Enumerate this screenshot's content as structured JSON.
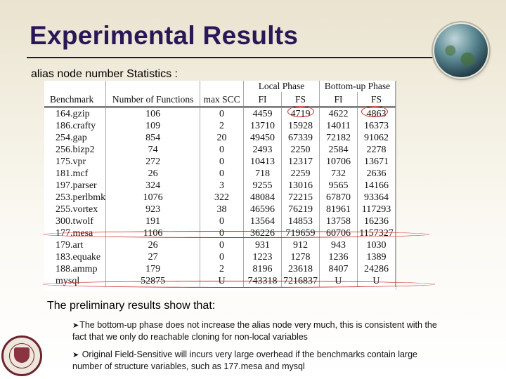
{
  "slide": {
    "title": "Experimental Results",
    "subheading": "alias node number Statistics :",
    "intro": "The preliminary results show that:",
    "bullets": [
      {
        "marker": "➤",
        "text": "The bottom-up phase does not increase the alias node very much, this is consistent with the fact that we only do reachable cloning for non-local variables"
      },
      {
        "marker": "➤",
        "text": " Original  Field-Sensitive will incurs very large overhead if the benchmarks contain large number of structure variables, such as 177.mesa and mysql"
      }
    ]
  },
  "table": {
    "group_headers": {
      "local_phase": "Local Phase",
      "bottom_up_phase": "Bottom-up Phase"
    },
    "columns": [
      "Benchmark",
      "Number of Functions",
      "max SCC",
      "FI",
      "FS",
      "FI",
      "FS"
    ],
    "rows": [
      [
        "164.gzip",
        "106",
        "0",
        "4459",
        "4719",
        "4622",
        "4863"
      ],
      [
        "186.crafty",
        "109",
        "2",
        "13710",
        "15928",
        "14011",
        "16373"
      ],
      [
        "254.gap",
        "854",
        "20",
        "49450",
        "67339",
        "72182",
        "91062"
      ],
      [
        "256.bizp2",
        "74",
        "0",
        "2493",
        "2250",
        "2584",
        "2278"
      ],
      [
        "175.vpr",
        "272",
        "0",
        "10413",
        "12317",
        "10706",
        "13671"
      ],
      [
        "181.mcf",
        "26",
        "0",
        "718",
        "2259",
        "732",
        "2636"
      ],
      [
        "197.parser",
        "324",
        "3",
        "9255",
        "13016",
        "9565",
        "14166"
      ],
      [
        "253.perlbmk",
        "1076",
        "322",
        "48084",
        "72215",
        "67870",
        "93364"
      ],
      [
        "255.vortex",
        "923",
        "38",
        "46596",
        "76219",
        "81961",
        "117293"
      ],
      [
        "300.twolf",
        "191",
        "0",
        "13564",
        "14853",
        "13758",
        "16236"
      ],
      [
        "177.mesa",
        "1106",
        "0",
        "36226",
        "719659",
        "60706",
        "1157327"
      ],
      [
        "179.art",
        "26",
        "0",
        "931",
        "912",
        "943",
        "1030"
      ],
      [
        "183.equake",
        "27",
        "0",
        "1223",
        "1278",
        "1236",
        "1389"
      ],
      [
        "188.ammp",
        "179",
        "2",
        "8196",
        "23618",
        "8407",
        "24286"
      ],
      [
        "mysql",
        "52875",
        "U",
        "743318",
        "7216837",
        "U",
        "U"
      ]
    ]
  },
  "colors": {
    "title": "#2a1757",
    "annotation": "#cc2222"
  },
  "icons": {
    "globe": "globe-icon",
    "seal": "university-seal-icon"
  }
}
